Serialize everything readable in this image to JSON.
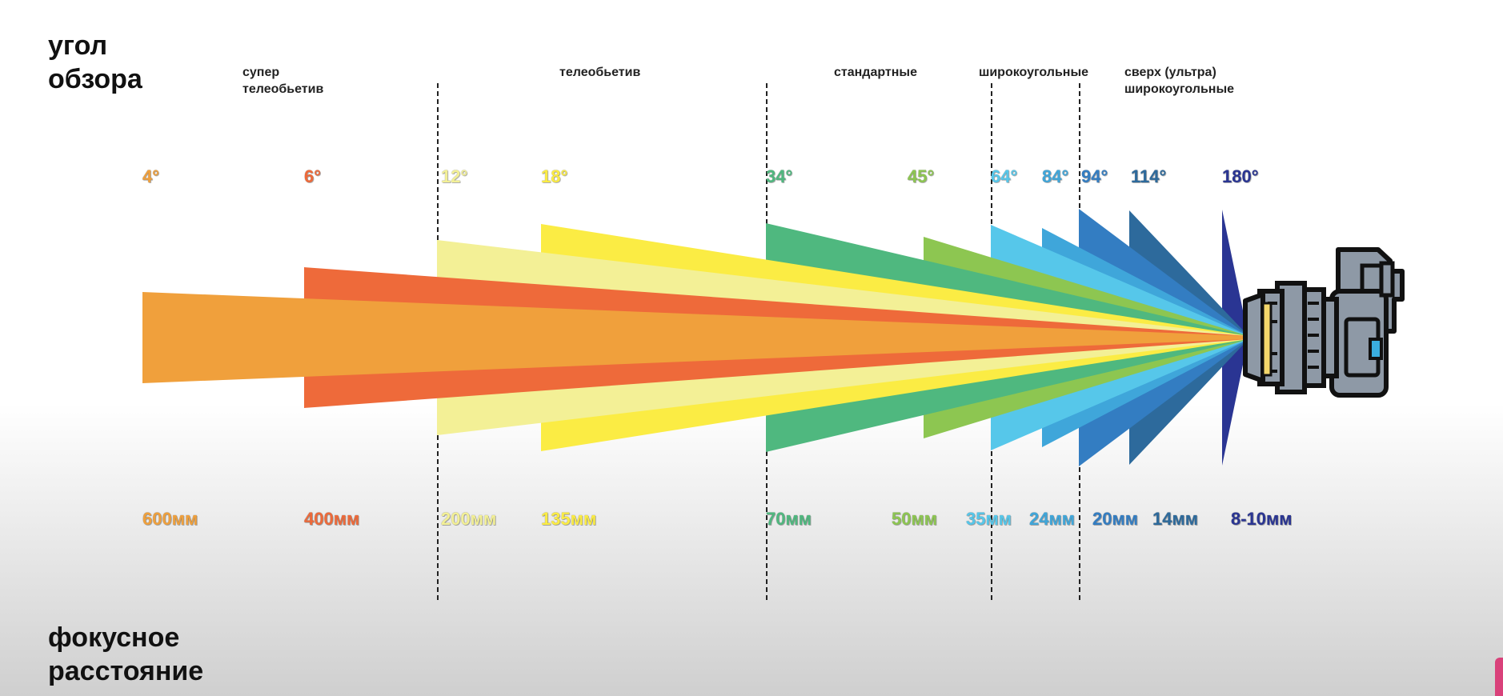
{
  "axis_titles": {
    "top": "угол\nобзора",
    "bottom": "фокусное\nрасстояние"
  },
  "categories": [
    {
      "label": "супер\nтелеобьетив"
    },
    {
      "label": "телеобьетив"
    },
    {
      "label": "стандартные"
    },
    {
      "label": "широкоугольные"
    },
    {
      "label": "сверх (ультра)\nширокоугольные"
    }
  ],
  "lenses": [
    {
      "angle": "4°",
      "focal": "600мм",
      "angle_deg": 4,
      "focal_mm": "600",
      "color": "#F0A03C"
    },
    {
      "angle": "6°",
      "focal": "400мм",
      "angle_deg": 6,
      "focal_mm": "400",
      "color": "#EE6A3A"
    },
    {
      "angle": "12°",
      "focal": "200мм",
      "angle_deg": 12,
      "focal_mm": "200",
      "color": "#F3F096"
    },
    {
      "angle": "18°",
      "focal": "135мм",
      "angle_deg": 18,
      "focal_mm": "135",
      "color": "#FBEC44"
    },
    {
      "angle": "34°",
      "focal": "70мм",
      "angle_deg": 34,
      "focal_mm": "70",
      "color": "#4FB87F"
    },
    {
      "angle": "45°",
      "focal": "50мм",
      "angle_deg": 45,
      "focal_mm": "50",
      "color": "#8DC651"
    },
    {
      "angle": "64°",
      "focal": "35мм",
      "angle_deg": 64,
      "focal_mm": "35",
      "color": "#56C7EA"
    },
    {
      "angle": "84°",
      "focal": "24мм",
      "angle_deg": 84,
      "focal_mm": "24",
      "color": "#3FA6DA"
    },
    {
      "angle": "94°",
      "focal": "20мм",
      "angle_deg": 94,
      "focal_mm": "20",
      "color": "#337DC2"
    },
    {
      "angle": "114°",
      "focal": "14мм",
      "angle_deg": 114,
      "focal_mm": "14",
      "color": "#2D6A9C"
    },
    {
      "angle": "180°",
      "focal": "8-10мм",
      "angle_deg": 180,
      "focal_mm": "8-10",
      "color": "#2A3593"
    }
  ],
  "camera": {
    "icon": "camera-icon",
    "body_color": "#8E99A6",
    "outline_color": "#111111",
    "lens_accent": "#F4D76B",
    "screen_color": "#3AAEE0"
  }
}
